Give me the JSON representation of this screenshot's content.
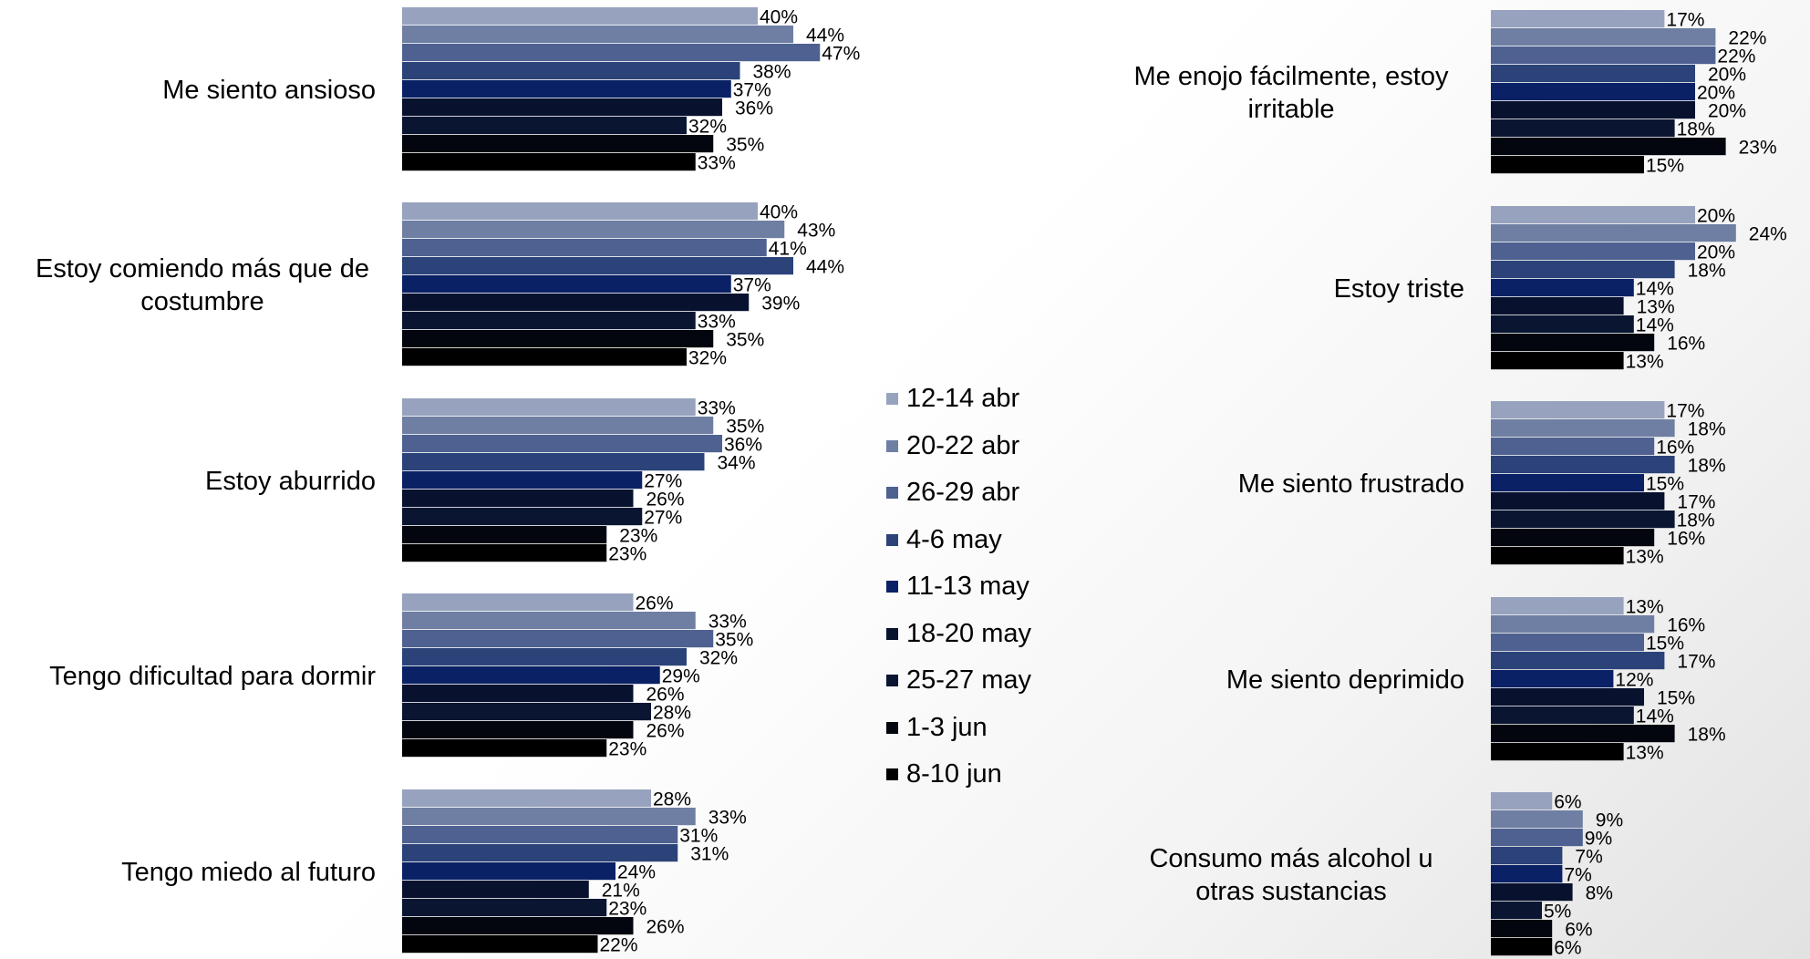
{
  "colors": [
    "#97a3be",
    "#6f7fa3",
    "#4e6190",
    "#2b4379",
    "#0a2165",
    "#08122e",
    "#0a1631",
    "#03060f",
    "#000000"
  ],
  "chart_data": [
    {
      "type": "bar",
      "orientation": "horizontal",
      "series": [
        {
          "name": "12-14 abr"
        },
        {
          "name": "20-22 abr"
        },
        {
          "name": "26-29 abr"
        },
        {
          "name": "4-6 may"
        },
        {
          "name": "11-13 may"
        },
        {
          "name": "18-20 may"
        },
        {
          "name": "25-27 may"
        },
        {
          "name": "1-3 jun"
        },
        {
          "name": "8-10 jun"
        }
      ],
      "legend_placement": "center",
      "groups": [
        {
          "category": [
            "Me siento ansioso"
          ],
          "values": [
            40,
            44,
            47,
            38,
            37,
            36,
            32,
            35,
            33
          ],
          "labels": [
            "40%",
            "44%",
            "47%",
            "38%",
            "37%",
            "36%",
            "32%",
            "35%",
            "33%"
          ]
        },
        {
          "category": [
            "Estoy comiendo más que de",
            "costumbre"
          ],
          "values": [
            40,
            43,
            41,
            44,
            37,
            39,
            33,
            35,
            32
          ],
          "labels": [
            "40%",
            "43%",
            "41%",
            "44%",
            "37%",
            "39%",
            "33%",
            "35%",
            "32%"
          ]
        },
        {
          "category": [
            "Estoy aburrido"
          ],
          "values": [
            33,
            35,
            36,
            34,
            27,
            26,
            27,
            23,
            23
          ],
          "labels": [
            "33%",
            "35%",
            "36%",
            "34%",
            "27%",
            "26%",
            "27%",
            "23%",
            "23%"
          ]
        },
        {
          "category": [
            "Tengo dificultad para dormir"
          ],
          "values": [
            26,
            33,
            35,
            32,
            29,
            26,
            28,
            26,
            23
          ],
          "labels": [
            "26%",
            "33%",
            "35%",
            "32%",
            "29%",
            "26%",
            "28%",
            "26%",
            "23%"
          ]
        },
        {
          "category": [
            "Tengo miedo al futuro"
          ],
          "values": [
            28,
            33,
            31,
            31,
            24,
            21,
            23,
            26,
            22
          ],
          "labels": [
            "28%",
            "33%",
            "31%",
            "31%",
            "24%",
            "21%",
            "23%",
            "26%",
            "22%"
          ]
        }
      ]
    },
    {
      "type": "bar",
      "orientation": "horizontal",
      "series_ref": "same as chart 1",
      "groups": [
        {
          "category": [
            "Me enojo fácilmente, estoy",
            "irritable"
          ],
          "values": [
            17,
            22,
            22,
            20,
            20,
            20,
            18,
            23,
            15
          ],
          "labels": [
            "17%",
            "22%",
            "22%",
            "20%",
            "20%",
            "20%",
            "18%",
            "23%",
            "15%"
          ]
        },
        {
          "category": [
            "Estoy triste"
          ],
          "values": [
            20,
            24,
            20,
            18,
            14,
            13,
            14,
            16,
            13
          ],
          "labels": [
            "20%",
            "24%",
            "20%",
            "18%",
            "14%",
            "13%",
            "14%",
            "16%",
            "13%"
          ]
        },
        {
          "category": [
            "Me siento frustrado"
          ],
          "values": [
            17,
            18,
            16,
            18,
            15,
            17,
            18,
            16,
            13
          ],
          "labels": [
            "17%",
            "18%",
            "16%",
            "18%",
            "15%",
            "17%",
            "18%",
            "16%",
            "13%"
          ]
        },
        {
          "category": [
            "Me siento deprimido"
          ],
          "values": [
            13,
            16,
            15,
            17,
            12,
            15,
            14,
            18,
            13
          ],
          "labels": [
            "13%",
            "16%",
            "15%",
            "17%",
            "12%",
            "15%",
            "14%",
            "18%",
            "13%"
          ]
        },
        {
          "category": [
            "Consumo más alcohol u",
            "otras sustancias"
          ],
          "values": [
            6,
            9,
            9,
            7,
            7,
            8,
            5,
            6,
            6
          ],
          "labels": [
            "6%",
            "9%",
            "9%",
            "7%",
            "7%",
            "8%",
            "5%",
            "6%",
            "6%"
          ]
        }
      ]
    }
  ]
}
